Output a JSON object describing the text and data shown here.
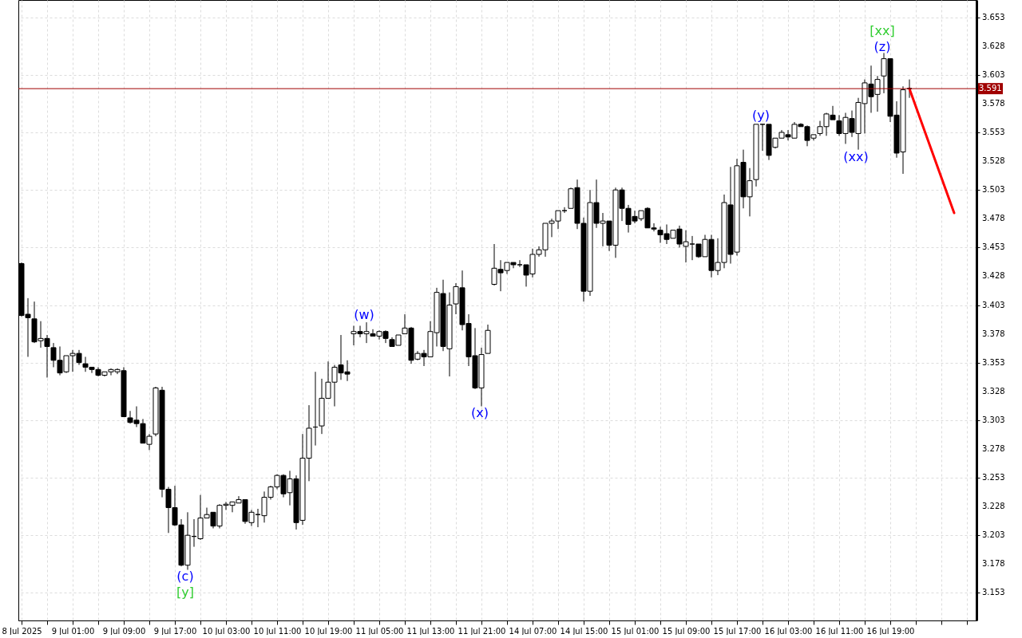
{
  "chart_data": {
    "type": "candlestick",
    "categories": [
      "8 Jul 2025",
      null,
      null,
      null,
      null,
      null,
      null,
      null,
      "9 Jul 01:00",
      null,
      null,
      null,
      null,
      null,
      null,
      null,
      "9 Jul 09:00",
      null,
      null,
      null,
      null,
      null,
      null,
      null,
      "9 Jul 17:00",
      null,
      null,
      null,
      null,
      null,
      null,
      null,
      "10 Jul 03:00",
      null,
      null,
      null,
      null,
      null,
      null,
      null,
      "10 Jul 11:00",
      null,
      null,
      null,
      null,
      null,
      null,
      null,
      "10 Jul 19:00",
      null,
      null,
      null,
      null,
      null,
      null,
      null,
      "11 Jul 05:00",
      null,
      null,
      null,
      null,
      null,
      null,
      null,
      "11 Jul 13:00",
      null,
      null,
      null,
      null,
      null,
      null,
      null,
      "11 Jul 21:00",
      null,
      null,
      null,
      null,
      null,
      null,
      null,
      "14 Jul 07:00",
      null,
      null,
      null,
      null,
      null,
      null,
      null,
      "14 Jul 15:00",
      null,
      null,
      null,
      null,
      null,
      null,
      null,
      "15 Jul 01:00",
      null,
      null,
      null,
      null,
      null,
      null,
      null,
      "15 Jul 09:00",
      null,
      null,
      null,
      null,
      null,
      null,
      null,
      "15 Jul 17:00",
      null,
      null,
      null,
      null,
      null,
      null,
      null,
      "16 Jul 03:00",
      null,
      null,
      null,
      null,
      null,
      null,
      null,
      "16 Jul 11:00",
      null,
      null,
      null,
      null,
      null,
      null,
      null,
      "16 Jul 19:00",
      null,
      null,
      null,
      null,
      null,
      null,
      null,
      null,
      null,
      null,
      null,
      null,
      null
    ],
    "ohlc": [
      [
        3.439,
        3.44,
        3.393,
        3.394
      ],
      [
        3.395,
        3.409,
        3.358,
        3.392
      ],
      [
        3.391,
        3.406,
        3.37,
        3.371
      ],
      [
        3.372,
        3.389,
        3.366,
        3.374
      ],
      [
        3.374,
        3.377,
        3.34,
        3.367
      ],
      [
        3.366,
        3.37,
        3.349,
        3.355
      ],
      [
        3.355,
        3.367,
        3.342,
        3.344
      ],
      [
        3.345,
        3.359,
        3.344,
        3.359
      ],
      [
        3.359,
        3.364,
        3.345,
        3.361
      ],
      [
        3.361,
        3.364,
        3.351,
        3.353
      ],
      [
        3.352,
        3.358,
        3.345,
        3.349
      ],
      [
        3.349,
        3.349,
        3.344,
        3.347
      ],
      [
        3.347,
        3.349,
        3.341,
        3.342
      ],
      [
        3.342,
        3.345,
        3.341,
        3.345
      ],
      [
        3.345,
        3.348,
        3.342,
        3.347
      ],
      [
        3.345,
        3.348,
        3.343,
        3.347
      ],
      [
        3.346,
        3.349,
        3.306,
        3.306
      ],
      [
        3.305,
        3.311,
        3.3,
        3.301
      ],
      [
        3.303,
        3.315,
        3.297,
        3.3
      ],
      [
        3.3,
        3.304,
        3.283,
        3.283
      ],
      [
        3.282,
        3.291,
        3.277,
        3.289
      ],
      [
        3.291,
        3.332,
        3.289,
        3.331
      ],
      [
        3.329,
        3.332,
        3.236,
        3.243
      ],
      [
        3.243,
        3.245,
        3.205,
        3.227
      ],
      [
        3.227,
        3.246,
        3.211,
        3.212
      ],
      [
        3.212,
        3.217,
        3.176,
        3.177
      ],
      [
        3.177,
        3.223,
        3.173,
        3.203
      ],
      [
        3.202,
        3.217,
        3.193,
        3.202
      ],
      [
        3.2,
        3.238,
        3.199,
        3.218
      ],
      [
        3.218,
        3.227,
        3.218,
        3.221
      ],
      [
        3.223,
        3.223,
        3.209,
        3.211
      ],
      [
        3.211,
        3.23,
        3.209,
        3.229
      ],
      [
        3.229,
        3.232,
        3.225,
        3.23
      ],
      [
        3.229,
        3.232,
        3.223,
        3.232
      ],
      [
        3.231,
        3.237,
        3.231,
        3.234
      ],
      [
        3.234,
        3.234,
        3.213,
        3.215
      ],
      [
        3.214,
        3.225,
        3.211,
        3.223
      ],
      [
        3.221,
        3.226,
        3.21,
        3.221
      ],
      [
        3.22,
        3.241,
        3.214,
        3.236
      ],
      [
        3.236,
        3.246,
        3.234,
        3.245
      ],
      [
        3.245,
        3.256,
        3.243,
        3.255
      ],
      [
        3.255,
        3.256,
        3.236,
        3.239
      ],
      [
        3.24,
        3.259,
        3.229,
        3.252
      ],
      [
        3.252,
        3.255,
        3.208,
        3.214
      ],
      [
        3.216,
        3.291,
        3.212,
        3.27
      ],
      [
        3.27,
        3.316,
        3.25,
        3.296
      ],
      [
        3.297,
        3.345,
        3.281,
        3.297
      ],
      [
        3.298,
        3.339,
        3.291,
        3.322
      ],
      [
        3.322,
        3.354,
        3.322,
        3.336
      ],
      [
        3.336,
        3.351,
        3.315,
        3.349
      ],
      [
        3.351,
        3.377,
        3.338,
        3.344
      ],
      [
        3.345,
        3.355,
        3.337,
        3.343
      ],
      [
        3.378,
        3.385,
        3.368,
        3.38
      ],
      [
        3.38,
        3.385,
        3.375,
        3.378
      ],
      [
        3.378,
        3.388,
        3.37,
        3.38
      ],
      [
        3.378,
        3.382,
        3.376,
        3.376
      ],
      [
        3.376,
        3.381,
        3.373,
        3.38
      ],
      [
        3.38,
        3.381,
        3.37,
        3.374
      ],
      [
        3.373,
        3.375,
        3.367,
        3.367
      ],
      [
        3.368,
        3.377,
        3.368,
        3.377
      ],
      [
        3.378,
        3.395,
        3.378,
        3.383
      ],
      [
        3.383,
        3.384,
        3.352,
        3.355
      ],
      [
        3.356,
        3.363,
        3.355,
        3.361
      ],
      [
        3.361,
        3.364,
        3.35,
        3.358
      ],
      [
        3.358,
        3.389,
        3.358,
        3.38
      ],
      [
        3.379,
        3.418,
        3.367,
        3.414
      ],
      [
        3.413,
        3.425,
        3.363,
        3.367
      ],
      [
        3.365,
        3.414,
        3.341,
        3.403
      ],
      [
        3.404,
        3.422,
        3.395,
        3.419
      ],
      [
        3.418,
        3.433,
        3.381,
        3.386
      ],
      [
        3.387,
        3.395,
        3.35,
        3.358
      ],
      [
        3.359,
        3.383,
        3.33,
        3.331
      ],
      [
        3.331,
        3.366,
        3.315,
        3.36
      ],
      [
        3.361,
        3.386,
        3.361,
        3.381
      ],
      [
        3.421,
        3.456,
        3.42,
        3.435
      ],
      [
        3.434,
        3.442,
        3.415,
        3.431
      ],
      [
        3.433,
        3.44,
        3.43,
        3.44
      ],
      [
        3.44,
        3.44,
        3.435,
        3.438
      ],
      [
        3.438,
        3.442,
        3.436,
        3.438
      ],
      [
        3.438,
        3.438,
        3.419,
        3.429
      ],
      [
        3.43,
        3.452,
        3.427,
        3.447
      ],
      [
        3.447,
        3.454,
        3.445,
        3.451
      ],
      [
        3.451,
        3.474,
        3.445,
        3.474
      ],
      [
        3.474,
        3.478,
        3.462,
        3.476
      ],
      [
        3.476,
        3.485,
        3.469,
        3.485
      ],
      [
        3.485,
        3.488,
        3.483,
        3.485
      ],
      [
        3.487,
        3.505,
        3.487,
        3.504
      ],
      [
        3.505,
        3.512,
        3.469,
        3.474
      ],
      [
        3.474,
        3.479,
        3.406,
        3.415
      ],
      [
        3.415,
        3.503,
        3.411,
        3.492
      ],
      [
        3.492,
        3.512,
        3.47,
        3.474
      ],
      [
        3.474,
        3.483,
        3.454,
        3.476
      ],
      [
        3.476,
        3.476,
        3.45,
        3.455
      ],
      [
        3.455,
        3.505,
        3.444,
        3.503
      ],
      [
        3.503,
        3.505,
        3.476,
        3.487
      ],
      [
        3.487,
        3.49,
        3.466,
        3.473
      ],
      [
        3.48,
        3.485,
        3.474,
        3.476
      ],
      [
        3.478,
        3.485,
        3.476,
        3.485
      ],
      [
        3.487,
        3.488,
        3.47,
        3.47
      ],
      [
        3.47,
        3.474,
        3.467,
        3.469
      ],
      [
        3.468,
        3.471,
        3.457,
        3.464
      ],
      [
        3.465,
        3.473,
        3.456,
        3.46
      ],
      [
        3.461,
        3.468,
        3.461,
        3.468
      ],
      [
        3.469,
        3.472,
        3.453,
        3.456
      ],
      [
        3.454,
        3.468,
        3.44,
        3.458
      ],
      [
        3.456,
        3.463,
        3.442,
        3.456
      ],
      [
        3.456,
        3.456,
        3.444,
        3.445
      ],
      [
        3.445,
        3.464,
        3.445,
        3.46
      ],
      [
        3.46,
        3.464,
        3.427,
        3.433
      ],
      [
        3.433,
        3.461,
        3.429,
        3.44
      ],
      [
        3.44,
        3.499,
        3.435,
        3.492
      ],
      [
        3.49,
        3.523,
        3.439,
        3.447
      ],
      [
        3.449,
        3.53,
        3.446,
        3.524
      ],
      [
        3.527,
        3.538,
        3.487,
        3.497
      ],
      [
        3.497,
        3.522,
        3.48,
        3.511
      ],
      [
        3.512,
        3.56,
        3.506,
        3.56
      ],
      [
        3.56,
        3.56,
        3.537,
        3.56
      ],
      [
        3.56,
        3.56,
        3.529,
        3.533
      ],
      [
        3.54,
        3.548,
        3.539,
        3.548
      ],
      [
        3.548,
        3.555,
        3.548,
        3.553
      ],
      [
        3.551,
        3.555,
        3.546,
        3.549
      ],
      [
        3.548,
        3.562,
        3.548,
        3.56
      ],
      [
        3.56,
        3.561,
        3.558,
        3.558
      ],
      [
        3.558,
        3.559,
        3.541,
        3.546
      ],
      [
        3.548,
        3.551,
        3.546,
        3.551
      ],
      [
        3.552,
        3.563,
        3.55,
        3.558
      ],
      [
        3.558,
        3.57,
        3.55,
        3.569
      ],
      [
        3.568,
        3.576,
        3.564,
        3.564
      ],
      [
        3.563,
        3.568,
        3.55,
        3.552
      ],
      [
        3.552,
        3.57,
        3.543,
        3.566
      ],
      [
        3.565,
        3.572,
        3.549,
        3.553
      ],
      [
        3.552,
        3.583,
        3.538,
        3.579
      ],
      [
        3.578,
        3.599,
        3.552,
        3.596
      ],
      [
        3.595,
        3.611,
        3.57,
        3.584
      ],
      [
        3.586,
        3.602,
        3.571,
        3.599
      ],
      [
        3.602,
        3.622,
        3.587,
        3.617
      ],
      [
        3.617,
        3.617,
        3.562,
        3.567
      ],
      [
        3.568,
        3.58,
        3.531,
        3.535
      ],
      [
        3.536,
        3.593,
        3.517,
        3.59
      ],
      [
        3.591,
        3.599,
        3.583,
        3.591
      ],
      null,
      null,
      null,
      null,
      null,
      null,
      null,
      null,
      null,
      null
    ],
    "series": [
      {
        "type": "line",
        "color": "#ff0000",
        "values": [
          null,
          null,
          null,
          null,
          null,
          null,
          null,
          null,
          null,
          null,
          null,
          null,
          null,
          null,
          null,
          null,
          null,
          null,
          null,
          null,
          null,
          null,
          null,
          null,
          null,
          null,
          null,
          null,
          null,
          null,
          null,
          null,
          null,
          null,
          null,
          null,
          null,
          null,
          null,
          null,
          null,
          null,
          null,
          null,
          null,
          null,
          null,
          null,
          null,
          null,
          null,
          null,
          null,
          null,
          null,
          null,
          null,
          null,
          null,
          null,
          null,
          null,
          null,
          null,
          null,
          null,
          null,
          null,
          null,
          null,
          null,
          null,
          null,
          null,
          null,
          null,
          null,
          null,
          null,
          null,
          null,
          null,
          null,
          null,
          null,
          null,
          null,
          null,
          null,
          null,
          null,
          null,
          null,
          null,
          null,
          null,
          null,
          null,
          null,
          null,
          null,
          null,
          null,
          null,
          null,
          null,
          null,
          null,
          null,
          null,
          null,
          null,
          null,
          null,
          null,
          null,
          null,
          null,
          null,
          null,
          null,
          null,
          null,
          null,
          null,
          null,
          null,
          null,
          null,
          null,
          null,
          null,
          null,
          null,
          null,
          null,
          null,
          null,
          null,
          3.591,
          null,
          null,
          null,
          null,
          null,
          null,
          3.483,
          null,
          null,
          null
        ]
      }
    ],
    "ylim": [
      3.129,
      3.668
    ],
    "yticks": [
      3.153,
      3.178,
      3.203,
      3.228,
      3.253,
      3.278,
      3.303,
      3.328,
      3.353,
      3.378,
      3.403,
      3.428,
      3.453,
      3.478,
      3.503,
      3.528,
      3.553,
      3.578,
      3.603,
      3.628,
      3.653
    ],
    "ref_lines": [
      {
        "axis": "y",
        "value": 3.591,
        "label": "3.591",
        "color": "#a00000"
      }
    ],
    "annotations": [
      "(w)",
      "(x)",
      "(y)",
      "(xx)",
      "(z)",
      "[xx]",
      "(c)",
      "[y]"
    ],
    "grid": true
  }
}
